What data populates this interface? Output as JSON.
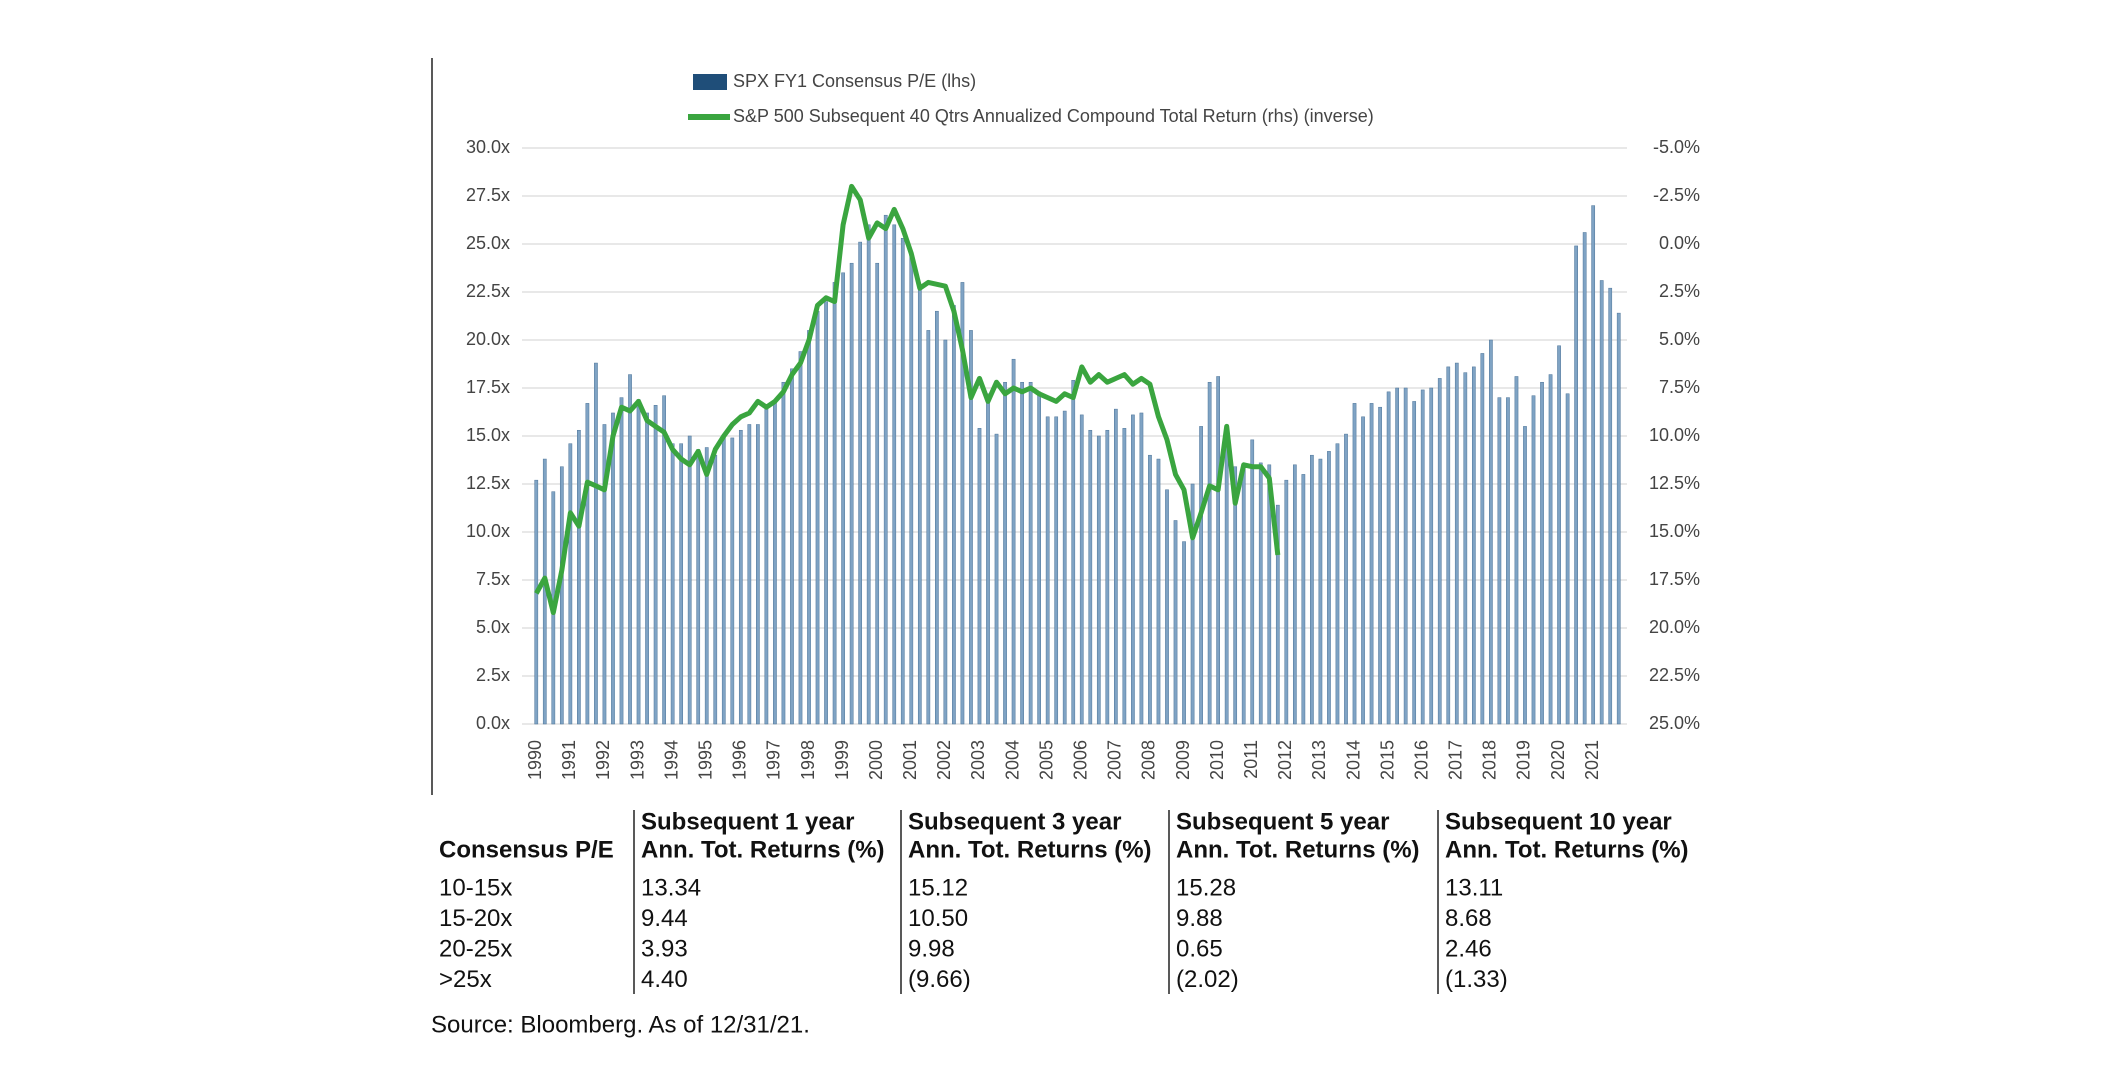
{
  "chart_data": {
    "type": "bar-line",
    "categories": [
      "1990",
      null,
      null,
      null,
      "1991",
      null,
      null,
      null,
      "1992",
      null,
      null,
      null,
      "1993",
      null,
      null,
      null,
      "1994",
      null,
      null,
      null,
      "1995",
      null,
      null,
      null,
      "1996",
      null,
      null,
      null,
      "1997",
      null,
      null,
      null,
      "1998",
      null,
      null,
      null,
      "1999",
      null,
      null,
      null,
      "2000",
      null,
      null,
      null,
      "2001",
      null,
      null,
      null,
      "2002",
      null,
      null,
      null,
      "2003",
      null,
      null,
      null,
      "2004",
      null,
      null,
      null,
      "2005",
      null,
      null,
      null,
      "2006",
      null,
      null,
      null,
      "2007",
      null,
      null,
      null,
      "2008",
      null,
      null,
      null,
      "2009",
      null,
      null,
      null,
      "2010",
      null,
      null,
      null,
      "2011",
      null,
      null,
      null,
      "2012",
      null,
      null,
      null,
      "2013",
      null,
      null,
      null,
      "2014",
      null,
      null,
      null,
      "2015",
      null,
      null,
      null,
      "2016",
      null,
      null,
      null,
      "2017",
      null,
      null,
      null,
      "2018",
      null,
      null,
      null,
      "2019",
      null,
      null,
      null,
      "2020",
      null,
      null,
      null,
      "2021",
      null,
      null,
      null
    ],
    "series": [
      {
        "name": "SPX FY1 Consensus P/E (lhs)",
        "type": "bar",
        "color": "#7fa3c4",
        "values": [
          12.7,
          13.8,
          12.1,
          13.4,
          14.6,
          15.3,
          16.7,
          18.8,
          15.6,
          16.2,
          17.0,
          18.2,
          16.9,
          16.2,
          16.6,
          17.1,
          14.6,
          14.6,
          15.0,
          14.3,
          14.4,
          14.0,
          15.0,
          14.9,
          15.3,
          15.6,
          15.6,
          16.6,
          16.8,
          17.8,
          18.5,
          19.4,
          20.5,
          21.5,
          22.0,
          23.0,
          23.5,
          24.0,
          25.1,
          26.0,
          24.0,
          26.5,
          26.0,
          25.3,
          24.5,
          22.8,
          20.5,
          21.5,
          20.0,
          21.8,
          23.0,
          20.5,
          15.4,
          17.2,
          15.1,
          17.8,
          19.0,
          17.8,
          17.8,
          17.3,
          16.0,
          16.0,
          16.3,
          17.9,
          16.1,
          15.3,
          15.0,
          15.3,
          16.4,
          15.4,
          16.1,
          16.2,
          14.0,
          13.8,
          12.2,
          10.6,
          9.5,
          12.5,
          15.5,
          17.8,
          18.1,
          15.0,
          13.4,
          13.5,
          14.8,
          13.6,
          13.5,
          11.4,
          12.7,
          13.5,
          13.0,
          14.0,
          13.8,
          14.2,
          14.6,
          15.1,
          16.7,
          16.0,
          16.7,
          16.5,
          17.3,
          17.5,
          17.5,
          16.8,
          17.4,
          17.5,
          18.0,
          18.6,
          18.8,
          18.3,
          18.6,
          19.3,
          20.0,
          17.0,
          17.0,
          18.1,
          15.5,
          17.1,
          17.8,
          18.2,
          19.7,
          17.2,
          24.9,
          25.6,
          27.0,
          23.1,
          22.7,
          21.4
        ]
      },
      {
        "name": "S&P 500 Subsequent 40 Qtrs Annualized Compound Total Return (rhs) (inverse)",
        "type": "line",
        "axis": "y2",
        "color": "#3aa53f",
        "values": [
          18.2,
          17.4,
          19.2,
          17.0,
          14.0,
          14.7,
          12.4,
          12.6,
          12.8,
          10.0,
          8.5,
          8.7,
          8.2,
          9.2,
          9.5,
          9.8,
          10.7,
          11.2,
          11.5,
          10.8,
          12.0,
          10.7,
          10.0,
          9.4,
          9.0,
          8.8,
          8.2,
          8.5,
          8.2,
          7.7,
          6.8,
          6.2,
          5.0,
          3.2,
          2.8,
          3.0,
          -1.0,
          -3.0,
          -2.3,
          -0.3,
          -1.1,
          -0.8,
          -1.8,
          -0.8,
          0.5,
          2.3,
          2.0,
          2.1,
          2.2,
          3.5,
          5.5,
          8.0,
          7.0,
          8.2,
          7.2,
          7.8,
          7.5,
          7.7,
          7.5,
          7.8,
          8.0,
          8.2,
          7.8,
          8.0,
          6.4,
          7.2,
          6.8,
          7.2,
          7.0,
          6.8,
          7.3,
          7.0,
          7.3,
          9.0,
          10.2,
          12.0,
          12.8,
          15.3,
          14.0,
          12.6,
          12.8,
          9.5,
          13.5,
          11.5,
          11.6,
          11.6,
          12.2,
          16.2,
          null,
          null,
          null,
          null,
          null,
          null,
          null,
          null,
          null,
          null,
          null,
          null,
          null,
          null,
          null,
          null,
          null,
          null,
          null,
          null,
          null,
          null,
          null,
          null,
          null,
          null,
          null,
          null,
          null,
          null,
          null,
          null,
          null,
          null,
          null,
          null,
          null,
          null,
          null,
          null
        ]
      }
    ],
    "ylim": [
      0,
      30
    ],
    "yticks": [
      {
        "value": 0,
        "label": "0.0x"
      },
      {
        "value": 2.5,
        "label": "2.5x"
      },
      {
        "value": 5,
        "label": "5.0x"
      },
      {
        "value": 7.5,
        "label": "7.5x"
      },
      {
        "value": 10,
        "label": "10.0x"
      },
      {
        "value": 12.5,
        "label": "12.5x"
      },
      {
        "value": 15,
        "label": "15.0x"
      },
      {
        "value": 17.5,
        "label": "17.5x"
      },
      {
        "value": 20,
        "label": "20.0x"
      },
      {
        "value": 22.5,
        "label": "22.5x"
      },
      {
        "value": 25,
        "label": "25.0x"
      },
      {
        "value": 27.5,
        "label": "27.5x"
      },
      {
        "value": 30,
        "label": "30.0x"
      }
    ],
    "y2lim": [
      25,
      -5
    ],
    "y2ticks": [
      {
        "value": 25,
        "label": "25.0%"
      },
      {
        "value": 22.5,
        "label": "22.5%"
      },
      {
        "value": 20,
        "label": "20.0%"
      },
      {
        "value": 17.5,
        "label": "17.5%"
      },
      {
        "value": 15,
        "label": "15.0%"
      },
      {
        "value": 12.5,
        "label": "12.5%"
      },
      {
        "value": 10,
        "label": "10.0%"
      },
      {
        "value": 7.5,
        "label": "7.5%"
      },
      {
        "value": 5,
        "label": "5.0%"
      },
      {
        "value": 2.5,
        "label": "2.5%"
      },
      {
        "value": 0,
        "label": "0.0%"
      },
      {
        "value": -2.5,
        "label": "-2.5%"
      },
      {
        "value": -5,
        "label": "-5.0%"
      }
    ],
    "grid": true,
    "legend": "top"
  },
  "table": {
    "header": [
      [
        "Consensus P/E"
      ],
      [
        "Subsequent 1 year",
        "Ann. Tot. Returns (%)"
      ],
      [
        "Subsequent 3 year",
        "Ann. Tot. Returns (%)"
      ],
      [
        "Subsequent 5 year",
        "Ann. Tot. Returns (%)"
      ],
      [
        "Subsequent 10 year",
        "Ann. Tot. Returns (%)"
      ]
    ],
    "rows": [
      [
        "10-15x",
        "13.34",
        "15.12",
        "15.28",
        "13.11"
      ],
      [
        "15-20x",
        "9.44",
        "10.50",
        "9.88",
        "8.68"
      ],
      [
        "20-25x",
        "3.93",
        "9.98",
        "0.65",
        "2.46"
      ],
      [
        ">25x",
        "4.40",
        "(9.66)",
        "(2.02)",
        "(1.33)"
      ]
    ]
  },
  "source": "Source: Bloomberg. As of 12/31/21."
}
